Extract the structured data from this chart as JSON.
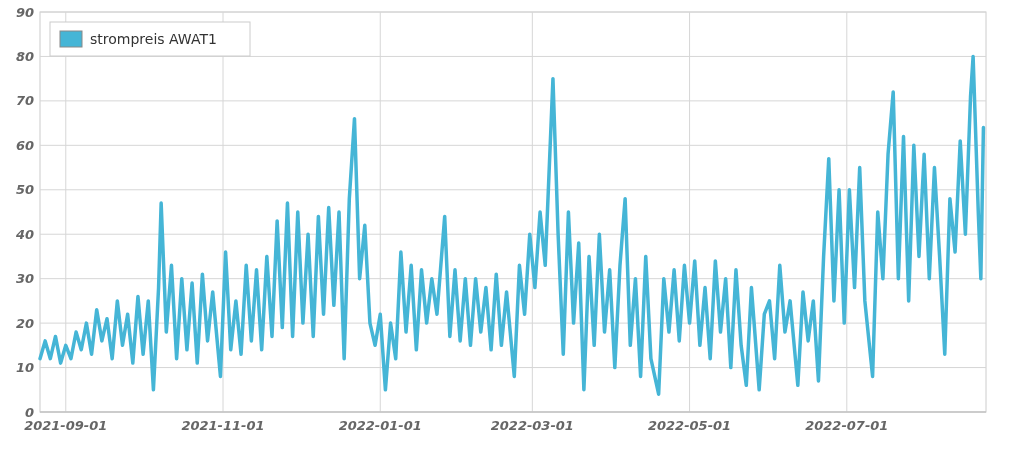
{
  "chart_data": {
    "type": "line",
    "legend": "top left",
    "grid": true,
    "xlim": [
      "2021-08-22",
      "2022-08-24"
    ],
    "xticks": [
      {
        "value": "2021-09-01",
        "label": "2021-09-01"
      },
      {
        "value": "2021-11-01",
        "label": "2021-11-01"
      },
      {
        "value": "2022-01-01",
        "label": "2022-01-01"
      },
      {
        "value": "2022-03-01",
        "label": "2022-03-01"
      },
      {
        "value": "2022-05-01",
        "label": "2022-05-01"
      },
      {
        "value": "2022-07-01",
        "label": "2022-07-01"
      }
    ],
    "ylim": [
      0,
      90
    ],
    "yticks": [
      0,
      10,
      20,
      30,
      40,
      50,
      60,
      70,
      80,
      90
    ],
    "x": [
      "2021-08-22",
      "2021-08-24",
      "2021-08-26",
      "2021-08-28",
      "2021-08-30",
      "2021-09-01",
      "2021-09-03",
      "2021-09-05",
      "2021-09-07",
      "2021-09-09",
      "2021-09-11",
      "2021-09-13",
      "2021-09-15",
      "2021-09-17",
      "2021-09-19",
      "2021-09-21",
      "2021-09-23",
      "2021-09-25",
      "2021-09-27",
      "2021-09-29",
      "2021-10-01",
      "2021-10-03",
      "2021-10-05",
      "2021-10-07",
      "2021-10-08",
      "2021-10-10",
      "2021-10-12",
      "2021-10-14",
      "2021-10-16",
      "2021-10-18",
      "2021-10-20",
      "2021-10-22",
      "2021-10-24",
      "2021-10-26",
      "2021-10-28",
      "2021-10-31",
      "2021-11-02",
      "2021-11-04",
      "2021-11-06",
      "2021-11-08",
      "2021-11-10",
      "2021-11-12",
      "2021-11-14",
      "2021-11-16",
      "2021-11-18",
      "2021-11-20",
      "2021-11-22",
      "2021-11-24",
      "2021-11-26",
      "2021-11-28",
      "2021-11-30",
      "2021-12-02",
      "2021-12-04",
      "2021-12-06",
      "2021-12-08",
      "2021-12-10",
      "2021-12-12",
      "2021-12-14",
      "2021-12-16",
      "2021-12-18",
      "2021-12-20",
      "2021-12-22",
      "2021-12-24",
      "2021-12-26",
      "2021-12-28",
      "2021-12-30",
      "2022-01-01",
      "2022-01-03",
      "2022-01-05",
      "2022-01-07",
      "2022-01-09",
      "2022-01-11",
      "2022-01-13",
      "2022-01-15",
      "2022-01-17",
      "2022-01-19",
      "2022-01-21",
      "2022-01-23",
      "2022-01-26",
      "2022-01-28",
      "2022-01-30",
      "2022-02-01",
      "2022-02-03",
      "2022-02-05",
      "2022-02-07",
      "2022-02-09",
      "2022-02-11",
      "2022-02-13",
      "2022-02-15",
      "2022-02-17",
      "2022-02-19",
      "2022-02-22",
      "2022-02-24",
      "2022-02-26",
      "2022-02-28",
      "2022-03-02",
      "2022-03-04",
      "2022-03-06",
      "2022-03-09",
      "2022-03-11",
      "2022-03-13",
      "2022-03-15",
      "2022-03-17",
      "2022-03-19",
      "2022-03-21",
      "2022-03-23",
      "2022-03-25",
      "2022-03-27",
      "2022-03-29",
      "2022-03-31",
      "2022-04-02",
      "2022-04-04",
      "2022-04-06",
      "2022-04-08",
      "2022-04-10",
      "2022-04-12",
      "2022-04-14",
      "2022-04-16",
      "2022-04-19",
      "2022-04-21",
      "2022-04-23",
      "2022-04-25",
      "2022-04-27",
      "2022-04-29",
      "2022-05-01",
      "2022-05-03",
      "2022-05-05",
      "2022-05-07",
      "2022-05-09",
      "2022-05-11",
      "2022-05-13",
      "2022-05-15",
      "2022-05-17",
      "2022-05-19",
      "2022-05-21",
      "2022-05-23",
      "2022-05-25",
      "2022-05-28",
      "2022-05-30",
      "2022-06-01",
      "2022-06-03",
      "2022-06-05",
      "2022-06-07",
      "2022-06-09",
      "2022-06-12",
      "2022-06-14",
      "2022-06-16",
      "2022-06-18",
      "2022-06-20",
      "2022-06-22",
      "2022-06-24",
      "2022-06-26",
      "2022-06-28",
      "2022-06-30",
      "2022-07-02",
      "2022-07-04",
      "2022-07-06",
      "2022-07-08",
      "2022-07-11",
      "2022-07-13",
      "2022-07-15",
      "2022-07-17",
      "2022-07-19",
      "2022-07-21",
      "2022-07-23",
      "2022-07-25",
      "2022-07-27",
      "2022-07-29",
      "2022-07-31",
      "2022-08-02",
      "2022-08-04",
      "2022-08-06",
      "2022-08-08",
      "2022-08-10",
      "2022-08-12",
      "2022-08-14",
      "2022-08-16",
      "2022-08-18",
      "2022-08-19",
      "2022-08-21",
      "2022-08-22",
      "2022-08-23"
    ],
    "series": [
      {
        "name": "strompreis AWAT1",
        "color": "#45b5d6",
        "values": [
          12,
          16,
          12,
          17,
          11,
          15,
          12,
          18,
          14,
          20,
          13,
          23,
          16,
          21,
          12,
          25,
          15,
          22,
          11,
          26,
          13,
          25,
          5,
          28,
          47,
          18,
          33,
          12,
          30,
          14,
          29,
          11,
          31,
          16,
          27,
          8,
          36,
          14,
          25,
          13,
          33,
          16,
          32,
          14,
          35,
          17,
          43,
          19,
          47,
          17,
          45,
          20,
          40,
          17,
          44,
          22,
          46,
          24,
          45,
          12,
          48,
          66,
          30,
          42,
          20,
          15,
          22,
          5,
          20,
          12,
          36,
          18,
          33,
          14,
          32,
          20,
          30,
          22,
          44,
          17,
          32,
          16,
          30,
          15,
          30,
          18,
          28,
          14,
          31,
          15,
          27,
          8,
          33,
          22,
          40,
          28,
          45,
          33,
          75,
          40,
          13,
          45,
          20,
          38,
          5,
          35,
          15,
          40,
          18,
          32,
          10,
          33,
          48,
          15,
          30,
          8,
          35,
          12,
          4,
          30,
          18,
          32,
          16,
          33,
          20,
          34,
          15,
          28,
          12,
          34,
          18,
          30,
          10,
          32,
          15,
          6,
          28,
          5,
          22,
          25,
          12,
          33,
          18,
          25,
          6,
          27,
          16,
          25,
          7,
          35,
          57,
          25,
          50,
          20,
          50,
          28,
          55,
          25,
          8,
          45,
          30,
          58,
          72,
          30,
          62,
          25,
          60,
          35,
          58,
          30,
          55,
          35,
          13,
          48,
          36,
          61,
          40,
          71,
          80,
          45,
          30,
          64
        ]
      }
    ]
  }
}
